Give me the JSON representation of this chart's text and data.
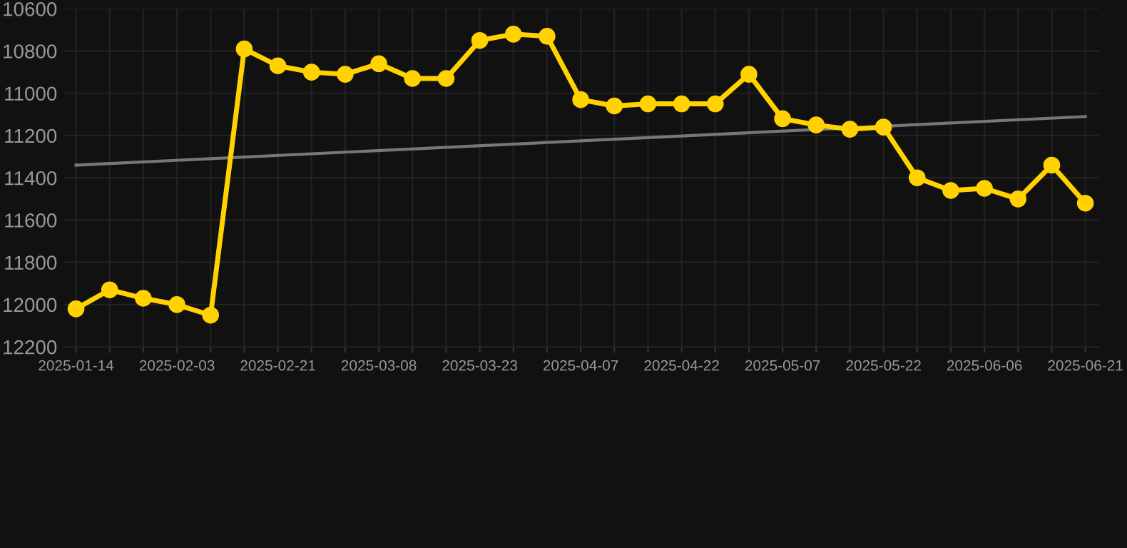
{
  "chart_data": {
    "type": "line",
    "categories": [
      "2025-01-14",
      null,
      null,
      "2025-02-03",
      null,
      null,
      "2025-02-21",
      null,
      null,
      "2025-03-08",
      null,
      null,
      "2025-03-23",
      null,
      null,
      "2025-04-07",
      null,
      null,
      "2025-04-22",
      null,
      null,
      "2025-05-07",
      null,
      null,
      "2025-05-22",
      null,
      null,
      "2025-06-06",
      null,
      null,
      "2025-06-21"
    ],
    "series": [
      {
        "color": "#ffd200",
        "marker": "circle",
        "values": [
          12020,
          11930,
          11970,
          12000,
          12050,
          10790,
          10870,
          10900,
          10910,
          10860,
          10930,
          10930,
          10750,
          10720,
          10730,
          11030,
          11060,
          11050,
          11050,
          11050,
          10910,
          11120,
          11150,
          11170,
          11160,
          11400,
          11460,
          11450,
          11500,
          11340,
          11520
        ]
      },
      {
        "type": "line",
        "color": "#777777",
        "marker": "none",
        "values": [
          11340,
          null,
          null,
          null,
          null,
          null,
          null,
          null,
          null,
          null,
          null,
          null,
          null,
          null,
          null,
          null,
          null,
          null,
          null,
          null,
          null,
          null,
          null,
          null,
          null,
          null,
          null,
          null,
          null,
          null,
          11110
        ]
      }
    ],
    "ylim": [
      12200,
      10600
    ],
    "yticks": [
      10600,
      10800,
      11000,
      11200,
      11400,
      11600,
      11800,
      12000,
      12200
    ],
    "grid": true
  }
}
